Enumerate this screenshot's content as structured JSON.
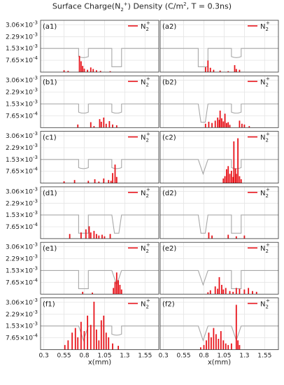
{
  "figure": {
    "title_prefix": "Surface Charge(N",
    "title_sub": "2",
    "title_sup": "+",
    "title_suffix": ") Density (C/m",
    "title_sup2": "2",
    "title_end": ", T = 0.3ns)",
    "xlabel": "x(mm)",
    "legend_base": "N",
    "legend_sub": "2",
    "legend_sup": "+",
    "bar_color": "#e8141b",
    "profile_color": "#a8a8a8",
    "grid_color": "#e4e4e4"
  },
  "chart_data": {
    "type": "bar",
    "xlim": [
      0.26,
      1.72
    ],
    "ylim": [
      0,
      0.00335
    ],
    "xticks": [
      0.3,
      0.55,
      0.8,
      1.05,
      1.3,
      1.55
    ],
    "xtick_labels": [
      "0.3",
      "0.55",
      "0.8",
      "1.05",
      "1.3",
      "1.55"
    ],
    "yticks": [
      0.000765,
      0.00153,
      0.00229,
      0.00306
    ],
    "ytick_labels": [
      {
        "mantissa": "7.65",
        "exp": "-4"
      },
      {
        "mantissa": "1.53",
        "exp": "-3"
      },
      {
        "mantissa": "2.29",
        "exp": "-3"
      },
      {
        "mantissa": "3.06",
        "exp": "-3"
      }
    ],
    "panels": [
      {
        "label": "(a1)",
        "profile": "round-square",
        "bars": [
          [
            0.55,
            0.00012
          ],
          [
            0.6,
            8e-05
          ],
          [
            0.74,
            0.00105
          ],
          [
            0.76,
            0.0007
          ],
          [
            0.78,
            0.0004
          ],
          [
            0.8,
            0.00022
          ],
          [
            0.84,
            0.00015
          ],
          [
            0.88,
            0.0003
          ],
          [
            0.91,
            0.0002
          ],
          [
            0.95,
            0.00012
          ],
          [
            1.0,
            8e-05
          ],
          [
            1.12,
            6e-05
          ]
        ]
      },
      {
        "label": "(a2)",
        "profile": "square-round",
        "bars": [
          [
            0.82,
            0.00032
          ],
          [
            0.85,
            0.00075
          ],
          [
            0.88,
            0.00028
          ],
          [
            0.92,
            0.00015
          ],
          [
            1.0,
            0.0001
          ],
          [
            1.1,
            6e-05
          ],
          [
            1.18,
            0.00045
          ],
          [
            1.2,
            0.0002
          ],
          [
            1.24,
            0.00015
          ]
        ]
      },
      {
        "label": "(b1)",
        "profile": "round-round",
        "bars": [
          [
            0.72,
            0.0002
          ],
          [
            0.88,
            0.00035
          ],
          [
            0.92,
            0.0001
          ],
          [
            0.99,
            0.00055
          ],
          [
            1.01,
            0.00038
          ],
          [
            1.04,
            0.00065
          ],
          [
            1.07,
            0.00025
          ],
          [
            1.11,
            0.00042
          ],
          [
            1.15,
            0.0002
          ],
          [
            1.2,
            0.00015
          ]
        ]
      },
      {
        "label": "(b2)",
        "profile": "trap-round",
        "bars": [
          [
            0.82,
            0.00025
          ],
          [
            0.86,
            0.00038
          ],
          [
            0.9,
            0.0003
          ],
          [
            0.94,
            0.00045
          ],
          [
            0.97,
            0.00065
          ],
          [
            0.99,
            0.0005
          ],
          [
            1.0,
            0.0011
          ],
          [
            1.02,
            0.0006
          ],
          [
            1.04,
            0.0004
          ],
          [
            1.06,
            0.0009
          ],
          [
            1.08,
            0.0003
          ],
          [
            1.1,
            0.00035
          ],
          [
            1.12,
            0.00018
          ],
          [
            1.24,
            0.00045
          ],
          [
            1.27,
            0.00025
          ],
          [
            1.3,
            0.0002
          ],
          [
            1.36,
            0.0001
          ]
        ]
      },
      {
        "label": "(c1)",
        "profile": "round-round",
        "bars": [
          [
            0.55,
            0.00012
          ],
          [
            0.68,
            0.0002
          ],
          [
            0.85,
            0.00015
          ],
          [
            0.93,
            0.00025
          ],
          [
            0.98,
            0.0001
          ],
          [
            1.04,
            0.0003
          ],
          [
            1.1,
            0.0002
          ],
          [
            1.13,
            0.00015
          ],
          [
            1.15,
            0.00065
          ],
          [
            1.18,
            0.0012
          ],
          [
            1.2,
            0.0004
          ]
        ]
      },
      {
        "label": "(c2)",
        "profile": "v-round",
        "bars": [
          [
            1.04,
            0.0003
          ],
          [
            1.06,
            0.00045
          ],
          [
            1.08,
            0.0009
          ],
          [
            1.1,
            0.0011
          ],
          [
            1.12,
            0.0006
          ],
          [
            1.14,
            0.0008
          ],
          [
            1.16,
            0.0004
          ],
          [
            1.17,
            0.0027
          ],
          [
            1.19,
            0.00095
          ],
          [
            1.2,
            0.0006
          ],
          [
            1.22,
            0.0029
          ],
          [
            1.24,
            0.00045
          ],
          [
            1.26,
            0.00025
          ]
        ]
      },
      {
        "label": "(d1)",
        "profile": "square-trap",
        "bars": [
          [
            0.62,
            0.0003
          ],
          [
            0.76,
            0.0004
          ],
          [
            0.82,
            0.0006
          ],
          [
            0.86,
            0.0008
          ],
          [
            0.88,
            0.0004
          ],
          [
            0.92,
            0.0005
          ],
          [
            0.95,
            0.0003
          ],
          [
            0.98,
            0.0002
          ],
          [
            1.02,
            0.00025
          ],
          [
            1.05,
            0.00015
          ],
          [
            1.12,
            0.0003
          ]
        ]
      },
      {
        "label": "(d2)",
        "profile": "trap-square",
        "bars": [
          [
            0.86,
            0.0004
          ],
          [
            0.9,
            0.0002
          ],
          [
            1.1,
            0.00025
          ],
          [
            1.2,
            0.00015
          ],
          [
            1.3,
            0.0002
          ]
        ]
      },
      {
        "label": "(e1)",
        "profile": "square-v",
        "bars": [
          [
            0.78,
            0.00015
          ],
          [
            0.9,
            0.0001
          ],
          [
            1.16,
            0.0004
          ],
          [
            1.18,
            0.0008
          ],
          [
            1.2,
            0.0014
          ],
          [
            1.22,
            0.0009
          ],
          [
            1.24,
            0.0006
          ],
          [
            1.26,
            0.0003
          ]
        ]
      },
      {
        "label": "(e2)",
        "profile": "v-square",
        "bars": [
          [
            0.85,
            0.00012
          ],
          [
            0.88,
            0.00025
          ],
          [
            0.94,
            0.0005
          ],
          [
            0.97,
            0.00035
          ],
          [
            0.99,
            0.0011
          ],
          [
            1.02,
            0.0006
          ],
          [
            1.04,
            0.0003
          ],
          [
            1.07,
            0.0004
          ],
          [
            1.12,
            0.0002
          ],
          [
            1.16,
            0.00015
          ],
          [
            1.2,
            0.0004
          ],
          [
            1.24,
            0.00035
          ],
          [
            1.3,
            0.0003
          ],
          [
            1.35,
            0.0004
          ],
          [
            1.4,
            0.0002
          ],
          [
            1.45,
            0.00015
          ]
        ]
      },
      {
        "label": "(f1)",
        "profile": "v-round",
        "bars": [
          [
            0.56,
            0.0003
          ],
          [
            0.6,
            0.0006
          ],
          [
            0.65,
            0.0011
          ],
          [
            0.69,
            0.0014
          ],
          [
            0.72,
            0.0008
          ],
          [
            0.76,
            0.0018
          ],
          [
            0.8,
            0.0012
          ],
          [
            0.84,
            0.0022
          ],
          [
            0.88,
            0.0016
          ],
          [
            0.92,
            0.0031
          ],
          [
            0.95,
            0.0013
          ],
          [
            0.98,
            0.0006
          ],
          [
            1.01,
            0.0019
          ],
          [
            1.04,
            0.0022
          ],
          [
            1.07,
            0.0011
          ],
          [
            1.1,
            0.0008
          ],
          [
            1.15,
            0.0004
          ],
          [
            1.22,
            0.00025
          ]
        ]
      },
      {
        "label": "(f2)",
        "profile": "v-v",
        "bars": [
          [
            0.76,
            0.00015
          ],
          [
            0.8,
            0.0003
          ],
          [
            0.83,
            0.0006
          ],
          [
            0.86,
            0.0011
          ],
          [
            0.89,
            0.0008
          ],
          [
            0.92,
            0.0014
          ],
          [
            0.95,
            0.001
          ],
          [
            0.98,
            0.0007
          ],
          [
            1.01,
            0.0012
          ],
          [
            1.04,
            0.0006
          ],
          [
            1.07,
            0.0004
          ],
          [
            1.1,
            0.0003
          ],
          [
            1.14,
            0.0004
          ],
          [
            1.2,
            0.0029
          ],
          [
            1.22,
            0.0006
          ],
          [
            1.24,
            0.0003
          ]
        ]
      }
    ]
  }
}
